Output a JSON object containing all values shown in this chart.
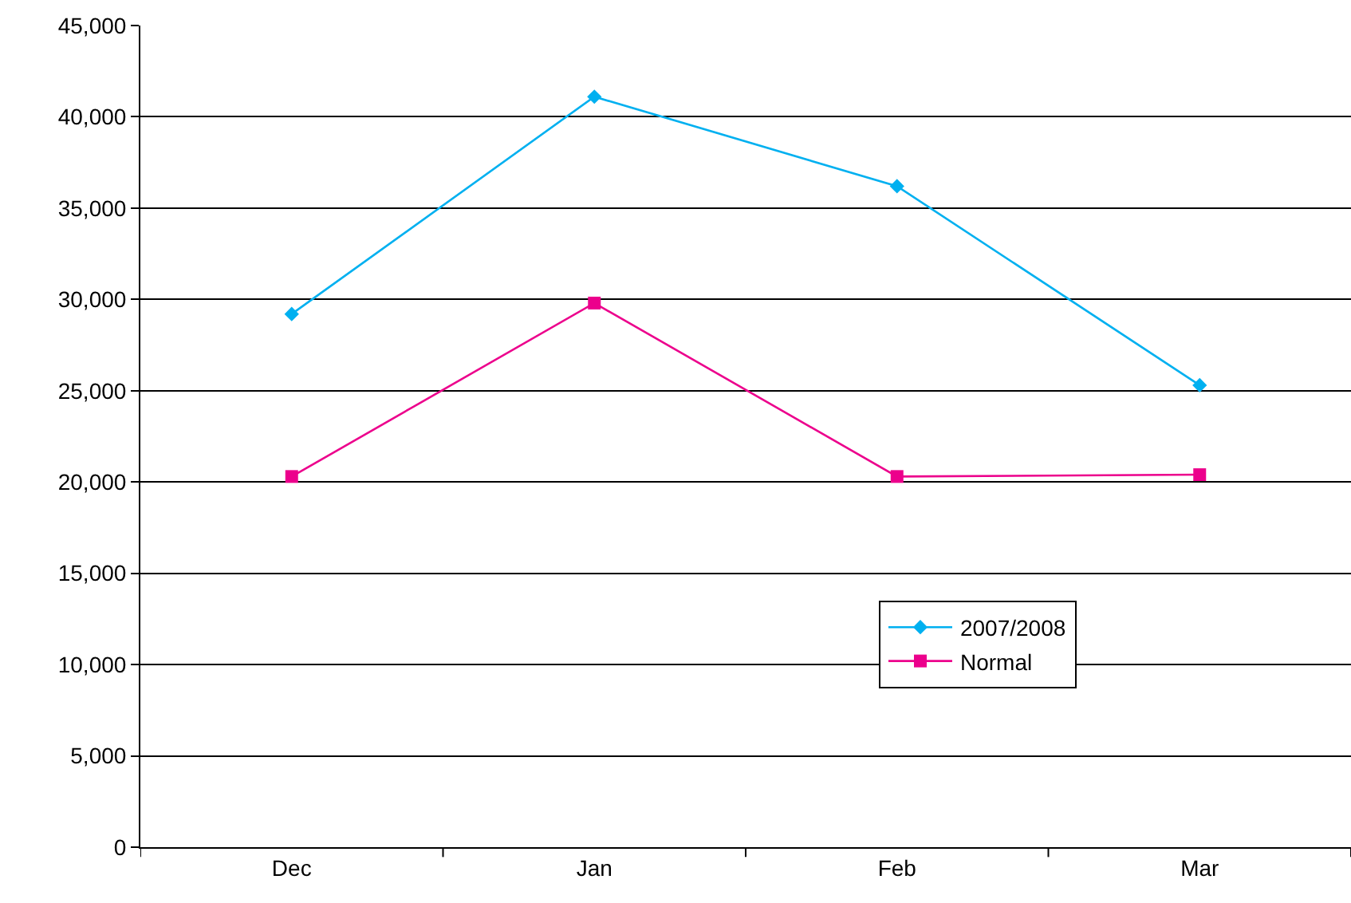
{
  "chart_data": {
    "type": "line",
    "categories": [
      "Dec",
      "Jan",
      "Feb",
      "Mar"
    ],
    "series": [
      {
        "name": "2007/2008",
        "color": "#00b0f0",
        "marker": "diamond",
        "values": [
          29200,
          41100,
          36200,
          25300
        ]
      },
      {
        "name": "Normal",
        "color": "#ec008c",
        "marker": "square",
        "values": [
          20300,
          29800,
          20300,
          20400
        ]
      }
    ],
    "ylim": [
      0,
      45000
    ],
    "yticks": [
      {
        "value": 0,
        "label": "0"
      },
      {
        "value": 5000,
        "label": "5,000"
      },
      {
        "value": 10000,
        "label": "10,000"
      },
      {
        "value": 15000,
        "label": "15,000"
      },
      {
        "value": 20000,
        "label": "20,000"
      },
      {
        "value": 25000,
        "label": "25,000"
      },
      {
        "value": 30000,
        "label": "30,000"
      },
      {
        "value": 35000,
        "label": "35,000"
      },
      {
        "value": 40000,
        "label": "40,000"
      },
      {
        "value": 45000,
        "label": "45,000"
      }
    ],
    "grid": "y",
    "legend": "bottom right",
    "line_style": "solid"
  }
}
